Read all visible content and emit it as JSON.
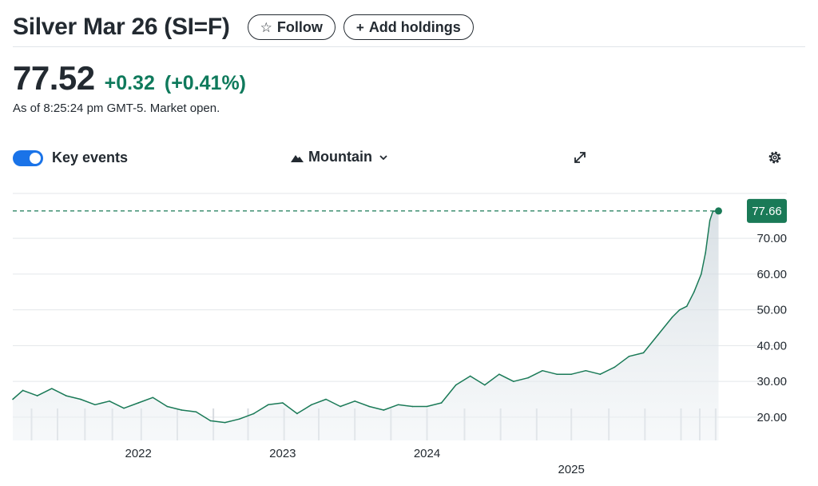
{
  "header": {
    "title": "Silver Mar 26 (SI=F)",
    "follow_label": "Follow",
    "follow_icon": "star-outline-icon",
    "add_holdings_label": "Add holdings",
    "add_icon": "plus-icon"
  },
  "quote": {
    "price": "77.52",
    "change": "+0.32",
    "change_percent": "(+0.41%)",
    "as_of": "As of 8:25:24 pm GMT-5. Market open."
  },
  "controls": {
    "key_events_label": "Key events",
    "key_events_on": true,
    "chart_type_label": "Mountain",
    "chart_type_icon": "mountain-icon",
    "expand_icon": "expand-icon",
    "settings_icon": "gear-icon"
  },
  "colors": {
    "positive": "#0f7a5c",
    "line": "#1a7a57",
    "toggle": "#1a73e8"
  },
  "chart_data": {
    "type": "area",
    "y_ticks": [
      "20.00",
      "30.00",
      "40.00",
      "50.00",
      "60.00",
      "70.00"
    ],
    "ylim": [
      13.5,
      83
    ],
    "x_ticks": [
      {
        "label": "2022",
        "x": 2022.0
      },
      {
        "label": "2023",
        "x": 2023.0
      },
      {
        "label": "2024",
        "x": 2024.0
      },
      {
        "label": "2025",
        "x": 2025.0
      }
    ],
    "xlim": [
      2021.13,
      2026.2
    ],
    "last_value_label": "77.66",
    "last_value": 77.66,
    "key_events_x": [
      2021.26,
      2021.44,
      2021.63,
      2021.82,
      2022.02,
      2022.27,
      2022.52,
      2022.76,
      2023.01,
      2023.25,
      2023.5,
      2023.75,
      2024.0,
      2024.26,
      2024.51,
      2024.76,
      2025.0,
      2025.26,
      2025.51,
      2025.76,
      2025.89,
      2026.0
    ],
    "series": [
      {
        "x": [
          2021.13,
          2021.2,
          2021.3,
          2021.4,
          2021.5,
          2021.6,
          2021.7,
          2021.8,
          2021.9,
          2022.0,
          2022.1,
          2022.2,
          2022.3,
          2022.4,
          2022.5,
          2022.6,
          2022.7,
          2022.8,
          2022.9,
          2023.0,
          2023.1,
          2023.2,
          2023.3,
          2023.4,
          2023.5,
          2023.6,
          2023.7,
          2023.8,
          2023.9,
          2024.0,
          2024.1,
          2024.2,
          2024.3,
          2024.4,
          2024.5,
          2024.6,
          2024.7,
          2024.8,
          2024.9,
          2025.0,
          2025.1,
          2025.2,
          2025.3,
          2025.4,
          2025.5,
          2025.6,
          2025.7,
          2025.75,
          2025.8,
          2025.85,
          2025.9,
          2025.93,
          2025.96,
          2025.98,
          2026.0,
          2026.02
        ],
        "y": [
          25,
          27.5,
          26,
          28,
          26,
          25,
          23.5,
          24.5,
          22.5,
          24,
          25.5,
          23,
          22,
          21.5,
          19,
          18.5,
          19.5,
          21,
          23.5,
          24,
          21,
          23.5,
          25,
          23,
          24.5,
          23,
          22,
          23.5,
          23,
          23,
          24,
          29,
          31.5,
          29,
          32,
          30,
          31,
          33,
          32,
          32,
          33,
          32,
          34,
          37,
          38,
          43,
          48,
          50,
          51,
          55,
          60,
          66,
          75,
          77.5,
          77.66,
          77.66
        ]
      }
    ]
  }
}
